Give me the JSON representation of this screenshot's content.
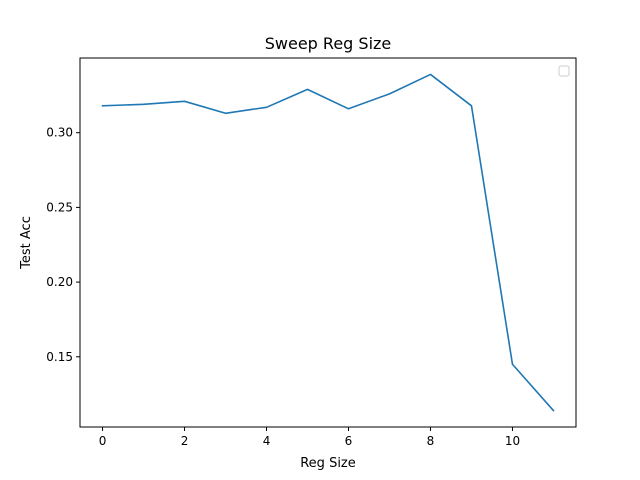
{
  "chart_data": {
    "type": "line",
    "title": "Sweep Reg Size",
    "xlabel": "Reg Size",
    "ylabel": "Test Acc",
    "x": [
      0,
      1,
      2,
      3,
      4,
      5,
      6,
      7,
      8,
      9,
      10,
      11
    ],
    "series": [
      {
        "values": [
          0.318,
          0.319,
          0.321,
          0.313,
          0.317,
          0.329,
          0.316,
          0.326,
          0.339,
          0.318,
          0.145,
          0.114
        ],
        "color": "#1f77b4"
      }
    ],
    "xlim": [
      -0.55,
      11.55
    ],
    "ylim": [
      0.103,
      0.35
    ],
    "xticks": [
      0,
      2,
      4,
      6,
      8,
      10
    ],
    "yticks": [
      0.15,
      0.2,
      0.25,
      0.3
    ],
    "ytick_labels": [
      "0.15",
      "0.20",
      "0.25",
      "0.30"
    ],
    "grid": false,
    "legend": {
      "placement": "upper-right",
      "entries": []
    }
  }
}
